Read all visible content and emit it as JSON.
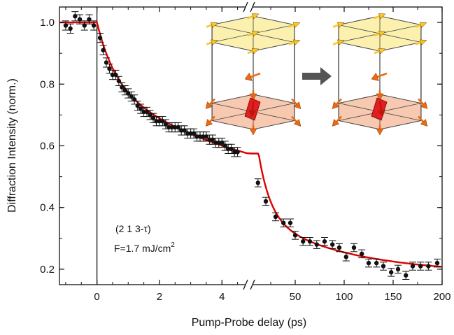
{
  "chart_data": {
    "type": "scatter",
    "title": "",
    "xlabel": "Pump-Probe delay (ps)",
    "ylabel": "Diffraction Intensity (norm.)",
    "ylim": [
      0.15,
      1.05
    ],
    "yticks": [
      "0.2",
      "0.4",
      "0.6",
      "0.8",
      "1.0"
    ],
    "x_axis_segments": [
      {
        "range": [
          -1.2,
          4.8
        ],
        "ticks": [
          "0",
          "2",
          "4"
        ]
      },
      {
        "range": [
          5,
          200
        ],
        "ticks": [
          "50",
          "100",
          "150",
          "200"
        ]
      }
    ],
    "annotations": {
      "reflection": "(2 1 3-τ)",
      "fluence_prefix": "F=1.7 mJ/cm",
      "fluence_sup": "2"
    },
    "colors": {
      "data": "#111111",
      "fit": "#dd0000",
      "upper_plane": "#fbefa6",
      "lower_plane": "#f6c4a8",
      "arrow": "#ee6a10",
      "arrow_yellow": "#f7c928",
      "transition_arrow": "#555555"
    },
    "insets": [
      "magnetic-structure-before",
      "magnetic-structure-after"
    ],
    "series": [
      {
        "name": "",
        "segment": 1,
        "x": [
          -1.0,
          -0.85,
          -0.7,
          -0.55,
          -0.4,
          -0.25,
          -0.1,
          0.1,
          0.2,
          0.3,
          0.4,
          0.5,
          0.6,
          0.7,
          0.8,
          0.9,
          1.0,
          1.1,
          1.2,
          1.3,
          1.4,
          1.5,
          1.6,
          1.7,
          1.8,
          1.9,
          2.0,
          2.1,
          2.2,
          2.3,
          2.4,
          2.5,
          2.6,
          2.7,
          2.8,
          2.9,
          3.0,
          3.1,
          3.2,
          3.3,
          3.4,
          3.5,
          3.6,
          3.7,
          3.8,
          3.9,
          4.0,
          4.1,
          4.2,
          4.3,
          4.4,
          4.5
        ],
        "y": [
          0.99,
          0.98,
          1.02,
          1.01,
          0.99,
          1.01,
          0.99,
          0.95,
          0.91,
          0.87,
          0.85,
          0.83,
          0.83,
          0.81,
          0.79,
          0.78,
          0.77,
          0.76,
          0.75,
          0.73,
          0.72,
          0.71,
          0.71,
          0.7,
          0.69,
          0.68,
          0.68,
          0.68,
          0.67,
          0.66,
          0.66,
          0.66,
          0.66,
          0.65,
          0.65,
          0.64,
          0.64,
          0.64,
          0.63,
          0.63,
          0.63,
          0.63,
          0.62,
          0.62,
          0.61,
          0.61,
          0.61,
          0.6,
          0.59,
          0.59,
          0.58,
          0.58
        ],
        "error": 0.015
      },
      {
        "name": "",
        "segment": 2,
        "x": [
          12,
          20,
          30,
          38,
          45,
          50,
          58,
          65,
          72,
          80,
          88,
          95,
          102,
          110,
          118,
          125,
          133,
          140,
          148,
          155,
          163,
          170,
          178,
          186,
          195
        ],
        "y": [
          0.48,
          0.42,
          0.37,
          0.35,
          0.35,
          0.31,
          0.29,
          0.29,
          0.28,
          0.29,
          0.28,
          0.27,
          0.24,
          0.27,
          0.25,
          0.22,
          0.22,
          0.21,
          0.19,
          0.2,
          0.18,
          0.21,
          0.21,
          0.21,
          0.22
        ],
        "error": 0.013
      }
    ]
  }
}
